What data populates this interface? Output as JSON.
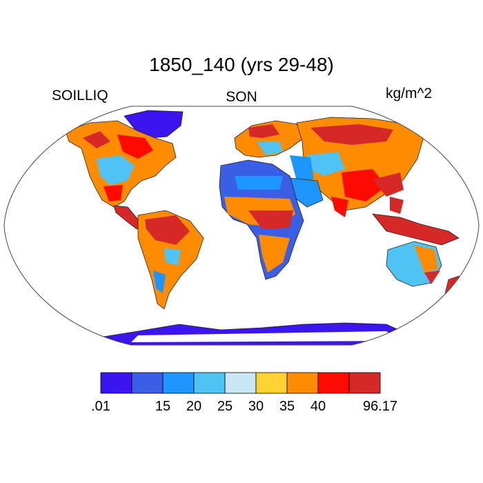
{
  "title": "1850_140 (yrs 29-48)",
  "left_label": "SOILLIQ",
  "center_label": "SON",
  "right_label": "kg/m^2",
  "colorbar": {
    "colors": [
      "#3c14f0",
      "#3a5ee6",
      "#1e96ff",
      "#50c3f5",
      "#c8e6f5",
      "#ffd232",
      "#ff8c00",
      "#ff0a00",
      "#d72828"
    ],
    "tick_labels": [
      ".01",
      "15",
      "20",
      "25",
      "30",
      "35",
      "40",
      "96.17"
    ],
    "tick_boundaries": [
      0,
      2,
      3,
      4,
      5,
      6,
      7,
      9
    ]
  },
  "map": {
    "projection": "Robinson",
    "variable": "SOILLIQ",
    "season": "SON",
    "units": "kg/m^2"
  }
}
